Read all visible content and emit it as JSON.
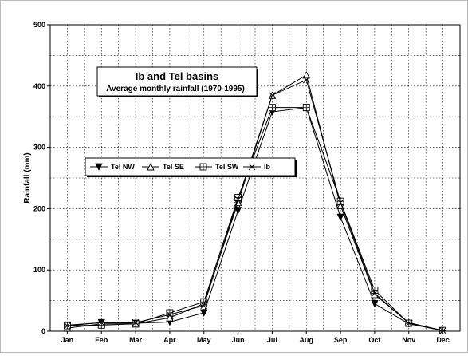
{
  "chart_data": {
    "type": "line",
    "title": "Ib and Tel basins",
    "subtitle": "Average monthly rainfall (1970-1995)",
    "xlabel": "",
    "ylabel": "Rainfall (mm)",
    "categories": [
      "Jan",
      "Feb",
      "Mar",
      "Apr",
      "May",
      "Jun",
      "Jul",
      "Aug",
      "Sep",
      "Oct",
      "Nov",
      "Dec"
    ],
    "ylim": [
      0,
      500
    ],
    "yticks": [
      0,
      100,
      200,
      300,
      400,
      500
    ],
    "grid": true,
    "legend_position": "middle-left",
    "series": [
      {
        "name": "Tel NW",
        "marker": "triangle-down-filled",
        "values": [
          10,
          14,
          13,
          15,
          30,
          197,
          358,
          365,
          186,
          45,
          12,
          1
        ]
      },
      {
        "name": "Tel SE",
        "marker": "triangle-up-open",
        "values": [
          5,
          12,
          12,
          22,
          45,
          210,
          385,
          418,
          205,
          60,
          14,
          1
        ]
      },
      {
        "name": "Tel SW",
        "marker": "square-plus",
        "values": [
          9,
          10,
          12,
          30,
          48,
          218,
          365,
          365,
          212,
          67,
          13,
          1
        ]
      },
      {
        "name": "Ib",
        "marker": "x",
        "values": [
          9,
          14,
          14,
          27,
          42,
          215,
          385,
          410,
          210,
          62,
          13,
          1
        ]
      }
    ]
  }
}
